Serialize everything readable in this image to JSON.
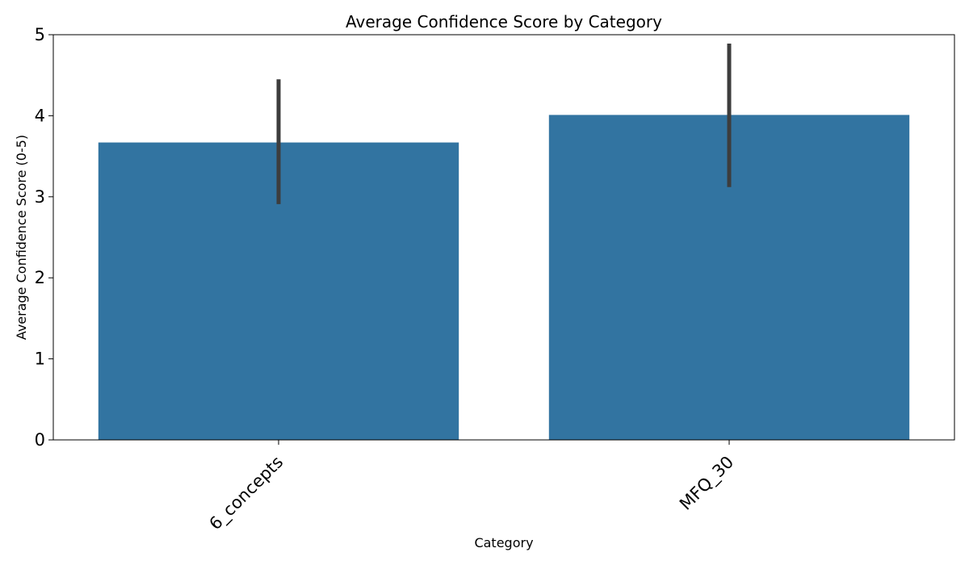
{
  "chart_data": {
    "type": "bar",
    "title": "Average Confidence Score by Category",
    "xlabel": "Category",
    "ylabel": "Average Confidence Score (0-5)",
    "categories": [
      "6_concepts",
      "MFQ_30"
    ],
    "values": [
      3.67,
      4.01
    ],
    "error_bars": [
      {
        "low": 2.91,
        "high": 4.45
      },
      {
        "low": 3.12,
        "high": 4.89
      }
    ],
    "ylim": [
      0,
      5
    ],
    "yticks": [
      0,
      1,
      2,
      3,
      4,
      5
    ],
    "grid": false,
    "legend": false,
    "colors": {
      "bar": "#3274a1",
      "error_bar": "#3d3d3d",
      "axis": "#000000"
    }
  }
}
